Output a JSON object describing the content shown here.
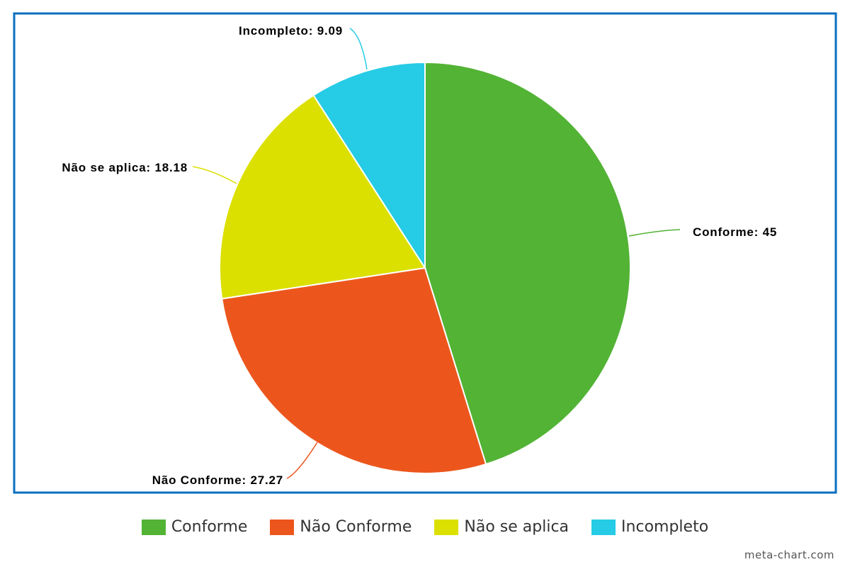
{
  "chart_data": {
    "type": "pie",
    "categories": [
      "Conforme",
      "Não Conforme",
      "Não se aplica",
      "Incompleto"
    ],
    "values": [
      45,
      27.27,
      18.18,
      9.09
    ],
    "value_labels": [
      "45",
      "27.27",
      "18.18",
      "9.09"
    ],
    "colors": [
      "#52b335",
      "#ec561c",
      "#dce000",
      "#26cbe5"
    ],
    "border_color": "#0a6fbf",
    "legend_placement": "bottom",
    "title": ""
  },
  "credit": "meta-chart.com"
}
